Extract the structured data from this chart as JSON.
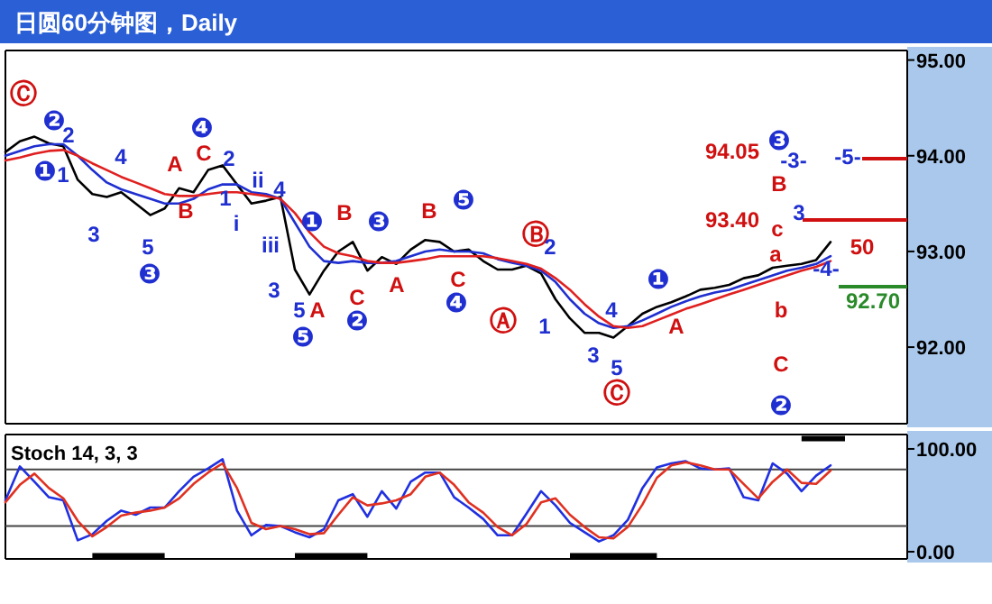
{
  "chart_data": [
    {
      "type": "line",
      "title": "日圆60分钟图，Daily",
      "tick_labels": "y",
      "categories": [
        null,
        null,
        null,
        null,
        null,
        null,
        null,
        null,
        null,
        null,
        null,
        null,
        null,
        null,
        null,
        null,
        null,
        null,
        null,
        null,
        null,
        null,
        null,
        null,
        null,
        null,
        null,
        null,
        null,
        null,
        null,
        null,
        null,
        null,
        null,
        null,
        null,
        null,
        null,
        null,
        null,
        null,
        null,
        null,
        null,
        null,
        null,
        null,
        null,
        null,
        null,
        null,
        null,
        null,
        null,
        null,
        null,
        null
      ],
      "series": [
        {
          "color": "#000000",
          "values": [
            94.04,
            94.15,
            94.2,
            94.13,
            94.1,
            93.75,
            93.6,
            93.57,
            93.62,
            93.5,
            93.38,
            93.45,
            93.66,
            93.62,
            93.85,
            93.9,
            93.7,
            93.5,
            93.53,
            93.57,
            92.81,
            92.55,
            92.8,
            93.0,
            93.1,
            92.8,
            92.94,
            92.87,
            93.02,
            93.12,
            93.1,
            93.0,
            93.02,
            92.9,
            92.81,
            92.81,
            92.85,
            92.77,
            92.5,
            92.3,
            92.15,
            92.15,
            92.1,
            92.22,
            92.35,
            92.42,
            92.47,
            92.53,
            92.6,
            92.62,
            92.65,
            92.72,
            92.75,
            92.83,
            92.85,
            92.87,
            92.91,
            93.1
          ]
        },
        {
          "color": "#1f2fd0",
          "values": [
            94.0,
            94.05,
            94.1,
            94.12,
            94.12,
            94.0,
            93.85,
            93.72,
            93.65,
            93.6,
            93.55,
            93.5,
            93.5,
            93.55,
            93.65,
            93.7,
            93.7,
            93.62,
            93.6,
            93.55,
            93.3,
            93.05,
            92.9,
            92.88,
            92.9,
            92.88,
            92.88,
            92.9,
            92.95,
            93.0,
            93.02,
            93.0,
            93.0,
            92.98,
            92.92,
            92.88,
            92.85,
            92.8,
            92.68,
            92.5,
            92.35,
            92.25,
            92.2,
            92.22,
            92.28,
            92.35,
            92.42,
            92.48,
            92.53,
            92.57,
            92.6,
            92.65,
            92.7,
            92.75,
            92.8,
            92.83,
            92.87,
            92.95
          ]
        },
        {
          "color": "#e02020",
          "values": [
            93.95,
            93.98,
            94.02,
            94.05,
            94.06,
            94.0,
            93.92,
            93.85,
            93.78,
            93.72,
            93.66,
            93.6,
            93.58,
            93.58,
            93.6,
            93.62,
            93.62,
            93.6,
            93.58,
            93.55,
            93.4,
            93.2,
            93.05,
            92.98,
            92.95,
            92.9,
            92.88,
            92.88,
            92.9,
            92.92,
            92.95,
            92.95,
            92.95,
            92.95,
            92.93,
            92.9,
            92.87,
            92.82,
            92.72,
            92.6,
            92.45,
            92.32,
            92.22,
            92.2,
            92.22,
            92.28,
            92.34,
            92.4,
            92.45,
            92.5,
            92.55,
            92.6,
            92.65,
            92.7,
            92.75,
            92.8,
            92.84,
            92.9
          ]
        }
      ],
      "ylim": [
        91.2,
        95.1
      ],
      "yticks": [
        {
          "value": 92,
          "label": "92.00"
        },
        {
          "value": 93,
          "label": "93.00"
        },
        {
          "value": 94,
          "label": "94.00"
        },
        {
          "value": 95,
          "label": "95.00"
        }
      ],
      "annotations": [
        "Ⓒ",
        "❷",
        "2",
        "❶",
        "1",
        "3",
        "4",
        "5",
        "❸",
        "A",
        "B",
        "❹",
        "C",
        "2",
        "1",
        "i",
        "ii",
        "4",
        "iii",
        "3",
        "❶",
        "5",
        "A",
        "❺",
        "B",
        "C",
        "❷",
        "❸",
        "A",
        "B",
        "❺",
        "C",
        "❹",
        "Ⓐ",
        "Ⓑ",
        "2",
        "1",
        "3",
        "4",
        "5",
        "Ⓒ",
        "❶",
        "A",
        "94.05",
        "❸",
        "-3-",
        "B",
        "93.40",
        "3",
        "c",
        "a",
        "b",
        "C",
        "❷",
        "-5-",
        "-4-",
        "50",
        "92.70"
      ]
    },
    {
      "type": "line",
      "title": "Stoch 14, 3, 3",
      "tick_labels": "y",
      "categories": [
        null,
        null,
        null,
        null,
        null,
        null,
        null,
        null,
        null,
        null,
        null,
        null,
        null,
        null,
        null,
        null,
        null,
        null,
        null,
        null,
        null,
        null,
        null,
        null,
        null,
        null,
        null,
        null,
        null,
        null,
        null,
        null,
        null,
        null,
        null,
        null,
        null,
        null,
        null,
        null,
        null,
        null,
        null,
        null,
        null,
        null,
        null,
        null,
        null,
        null,
        null,
        null,
        null,
        null,
        null,
        null,
        null,
        null
      ],
      "series": [
        {
          "color": "#2030e0",
          "values": [
            50,
            83,
            68,
            53,
            50,
            11,
            17,
            30,
            40,
            36,
            43,
            43,
            59,
            73,
            81,
            90,
            40,
            16,
            26,
            25,
            19,
            14,
            22,
            50,
            56,
            34,
            59,
            42,
            68,
            77,
            77,
            53,
            43,
            32,
            16,
            16,
            37,
            59,
            45,
            28,
            19,
            10,
            16,
            31,
            62,
            82,
            86,
            88,
            81,
            80,
            81,
            53,
            50,
            86,
            76,
            59,
            74,
            84
          ]
        },
        {
          "color": "#e03020",
          "values": [
            48,
            65,
            76,
            62,
            52,
            30,
            15,
            24,
            35,
            38,
            40,
            43,
            52,
            66,
            77,
            86,
            62,
            28,
            22,
            25,
            22,
            17,
            18,
            36,
            53,
            45,
            47,
            50,
            56,
            73,
            77,
            65,
            48,
            38,
            24,
            16,
            27,
            48,
            52,
            36,
            24,
            14,
            13,
            24,
            46,
            72,
            84,
            87,
            84,
            80,
            80,
            66,
            52,
            68,
            80,
            67,
            66,
            79
          ]
        },
        {
          "type": "step",
          "color": "#000000",
          "values": [
            null,
            null,
            null,
            null,
            null,
            null,
            -4,
            -4,
            -4,
            -4,
            -4,
            null,
            null,
            null,
            null,
            null,
            null,
            null,
            null,
            null,
            -4,
            -4,
            -4,
            -4,
            -4,
            null,
            null,
            null,
            null,
            null,
            null,
            null,
            null,
            null,
            null,
            null,
            null,
            null,
            null,
            -4,
            -4,
            -4,
            -4,
            -4,
            -4,
            null,
            null,
            null,
            null,
            null,
            null,
            null,
            null,
            null,
            null,
            110,
            110,
            110
          ]
        }
      ],
      "ylim": [
        -7,
        114
      ],
      "yticks": [
        {
          "value": 0,
          "label": "0.00"
        },
        {
          "value": 100,
          "label": "100.00"
        }
      ],
      "ref_lines": [
        {
          "axis": "y",
          "value": 80,
          "color": "#444444"
        },
        {
          "axis": "y",
          "value": 25,
          "color": "#444444"
        }
      ]
    }
  ]
}
